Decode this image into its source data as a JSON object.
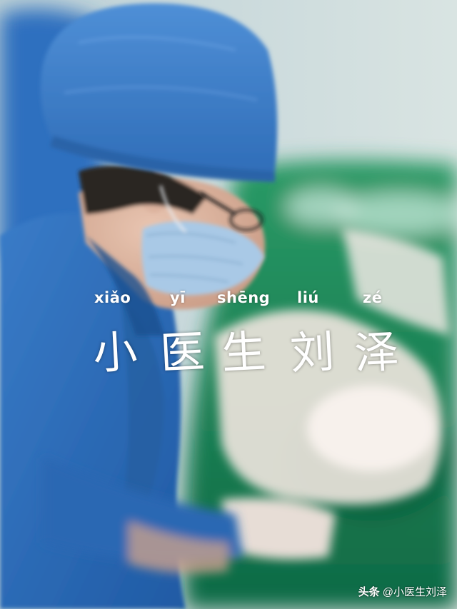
{
  "title": {
    "pinyin": [
      "xiǎo",
      "yī",
      "shēng",
      "liú",
      "zé"
    ],
    "characters": [
      "小",
      "医",
      "生",
      "刘",
      "泽"
    ]
  },
  "watermark": {
    "brand": "头条",
    "handle": "@小医生刘泽"
  },
  "colors": {
    "scrub_blue": "#3f7fc4",
    "drape_green": "#1e8a5a",
    "wall": "#cfdcdc",
    "text": "#ffffff"
  }
}
